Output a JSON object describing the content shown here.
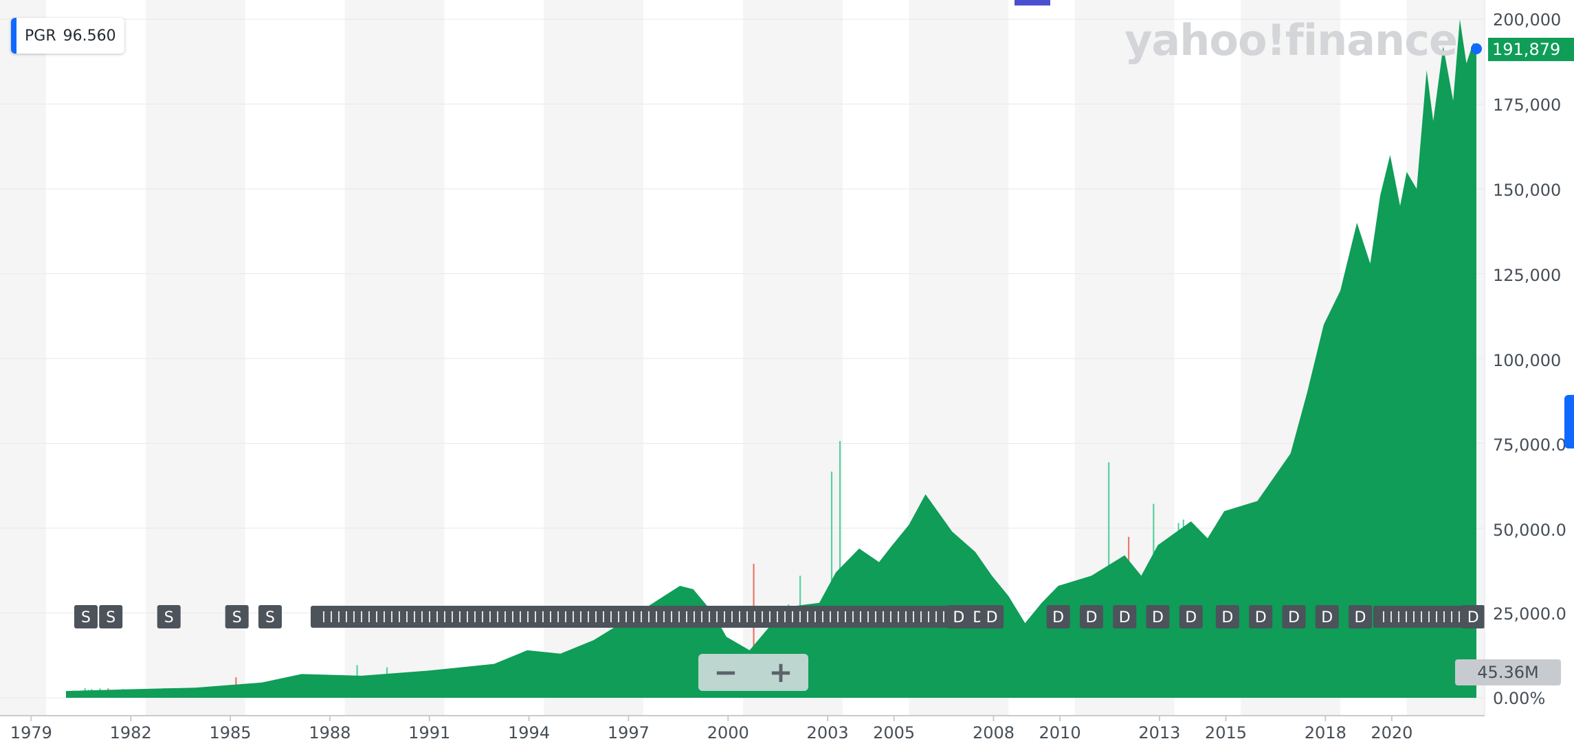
{
  "ticker": {
    "symbol": "PGR",
    "value": "96.560"
  },
  "watermark": "yahoo!finance",
  "last_value_label": "191,879",
  "volume_label": "45.36M",
  "zoom": {
    "minus": "−",
    "plus": "+"
  },
  "colors": {
    "area": "#0f9d58",
    "vol_up": "#26c281",
    "vol_down": "#e74c3c",
    "event": "#4c535b",
    "accent": "#0f69ff",
    "band": "#f5f5f5"
  },
  "chart_data": {
    "type": "area",
    "x_axis": {
      "ticks": [
        "1979",
        "1982",
        "1985",
        "1988",
        "1991",
        "1994",
        "1997",
        "2000",
        "2003",
        "2005",
        "2008",
        "2010",
        "2013",
        "2015",
        "2018",
        "2020"
      ],
      "range": [
        1979,
        2022.6
      ]
    },
    "y_axis": {
      "ticks": [
        "200,000",
        "175,000",
        "150,000",
        "125,000",
        "100,000",
        "75,000.0",
        "50,000.0",
        "25,000.0",
        "0.00%"
      ],
      "range": [
        0,
        200000
      ]
    },
    "series": [
      {
        "x": [
          1980.1,
          1982,
          1984,
          1986,
          1987.2,
          1989,
          1991,
          1993,
          1994,
          1995,
          1996,
          1997,
          1997.8,
          1998.6,
          1999,
          1999.6,
          2000,
          2000.7,
          2001.3,
          2002,
          2002.8,
          2003.3,
          2004,
          2004.6,
          2005,
          2005.5,
          2006,
          2006.8,
          2007.5,
          2008,
          2008.5,
          2009,
          2009.5,
          2010,
          2011,
          2012,
          2012.5,
          2013,
          2014,
          2014.5,
          2015,
          2016,
          2016.5,
          2017,
          2017.5,
          2018,
          2018.5,
          2019,
          2019.4,
          2019.7,
          2020,
          2020.3,
          2020.5,
          2020.8,
          2021.1,
          2021.3,
          2021.6,
          2021.9,
          2022.1,
          2022.3,
          2022.5,
          2022.6
        ],
        "y": [
          2000,
          2500,
          3000,
          4500,
          7000,
          6500,
          8000,
          10000,
          14000,
          13000,
          17000,
          23000,
          28000,
          33000,
          32000,
          25000,
          18000,
          14000,
          21000,
          27000,
          28000,
          37000,
          44000,
          40000,
          45000,
          51000,
          60000,
          49000,
          43000,
          36000,
          30000,
          22000,
          28000,
          33000,
          36000,
          42000,
          36000,
          45000,
          52000,
          47000,
          55000,
          58000,
          65000,
          72000,
          90000,
          110000,
          120000,
          140000,
          128000,
          148000,
          160000,
          145000,
          155000,
          150000,
          185000,
          170000,
          192000,
          176000,
          200000,
          187000,
          193000,
          191879
        ]
      }
    ],
    "volume": {
      "unit": "shares",
      "last": "45.36M"
    },
    "events": [
      "S",
      "S",
      "S",
      "S",
      "S",
      "D",
      "D",
      "D",
      "D",
      "D",
      "D",
      "D",
      "D",
      "D",
      "D",
      "D",
      "D",
      "D",
      "D",
      "D"
    ],
    "grid": true,
    "legend": "top-left"
  }
}
